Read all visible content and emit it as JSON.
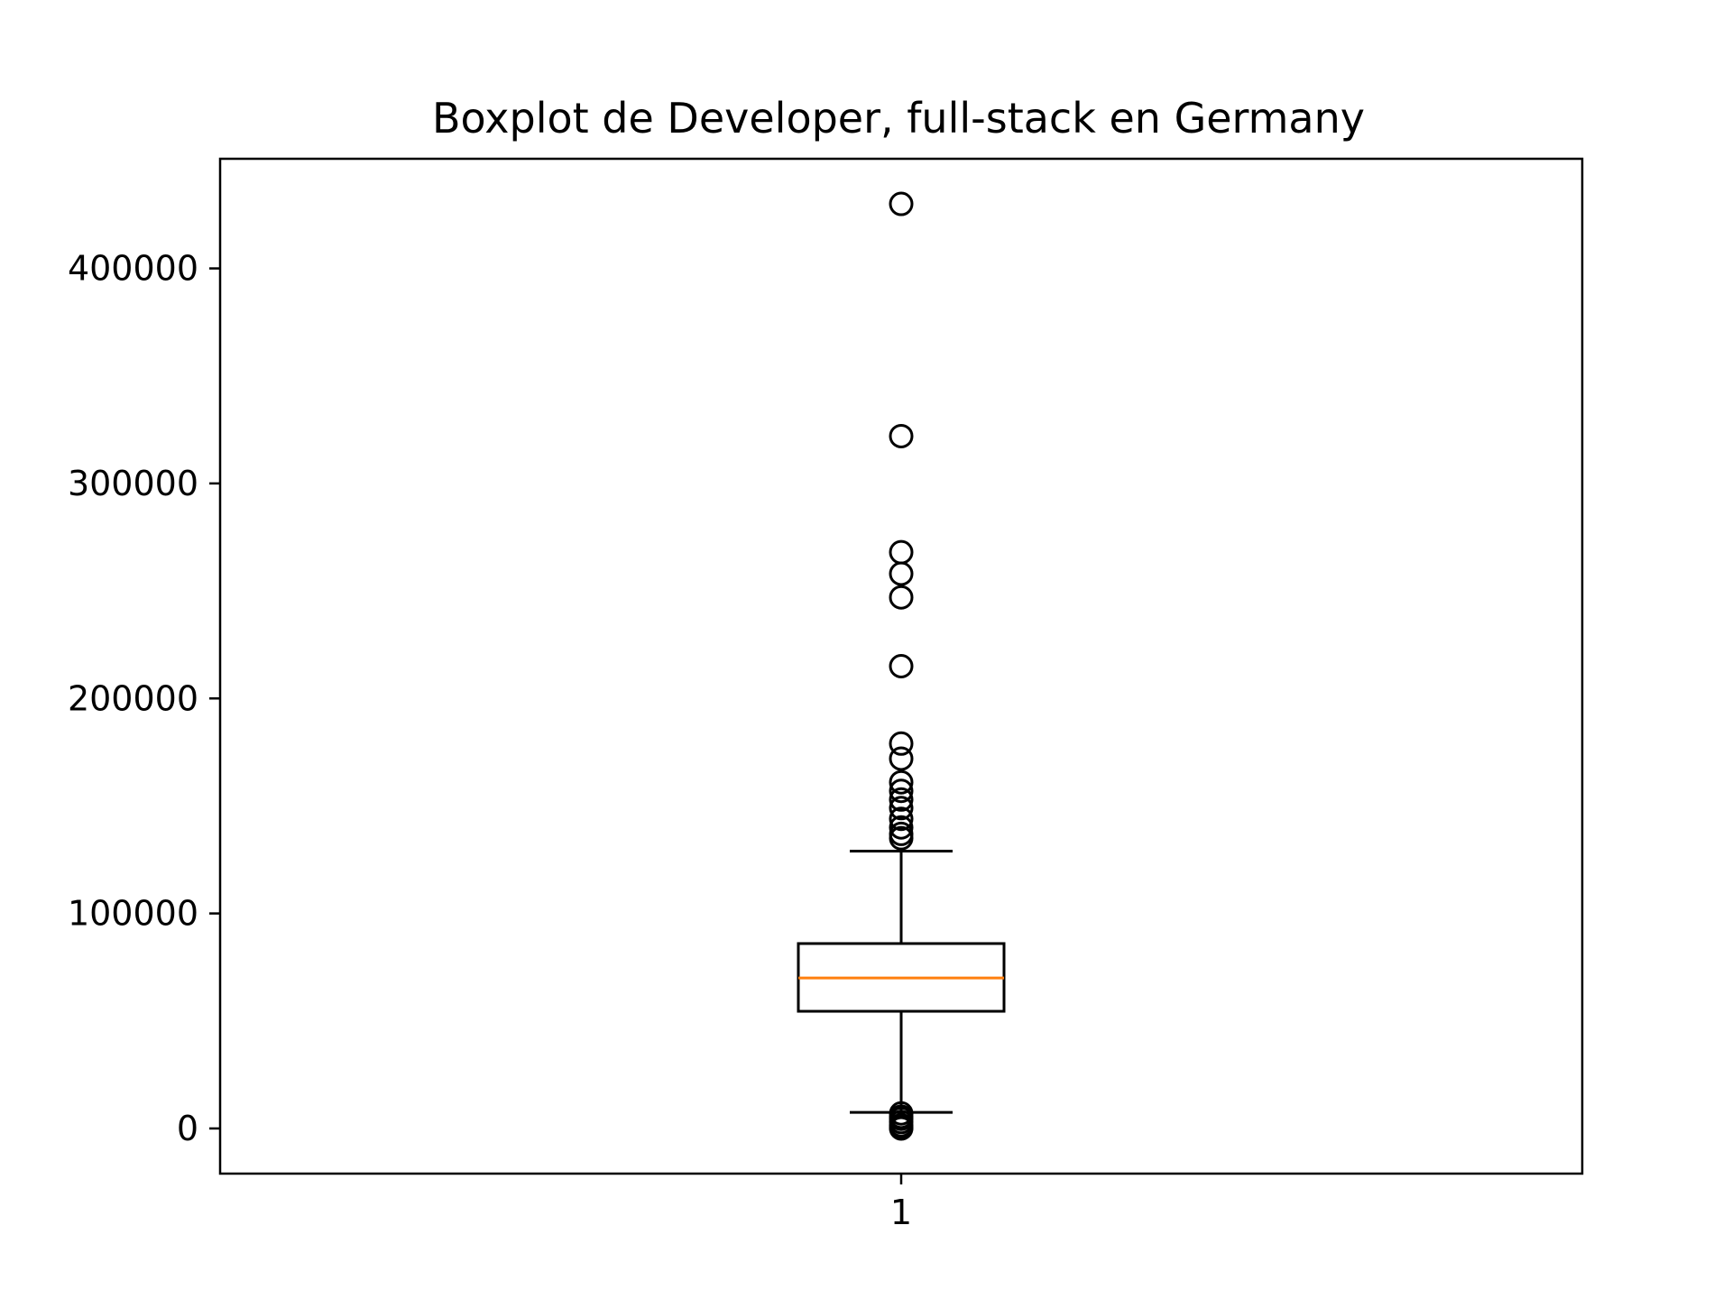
{
  "chart_data": {
    "type": "boxplot",
    "title": "Boxplot de Developer, full-stack en Germany",
    "xlabel": "",
    "ylabel": "",
    "categories": [
      "1"
    ],
    "ylim": [
      -21000,
      451000
    ],
    "yticks": [
      0,
      100000,
      200000,
      300000,
      400000
    ],
    "ytick_labels": [
      "0",
      "100000",
      "200000",
      "300000",
      "400000"
    ],
    "grid": false,
    "box": {
      "whisker_low": 7500,
      "q1": 54500,
      "median": 70000,
      "q3": 86000,
      "whisker_high": 129000
    },
    "outliers": [
      430000,
      322000,
      268000,
      258000,
      247000,
      215000,
      179000,
      172000,
      161000,
      157000,
      153000,
      149000,
      144000,
      140000,
      137000,
      135000,
      7000,
      5500,
      4500,
      3000,
      1500,
      500,
      0
    ],
    "colors": {
      "median": "#ff7f0e",
      "box": "#000000",
      "outlier": "#000000"
    }
  }
}
